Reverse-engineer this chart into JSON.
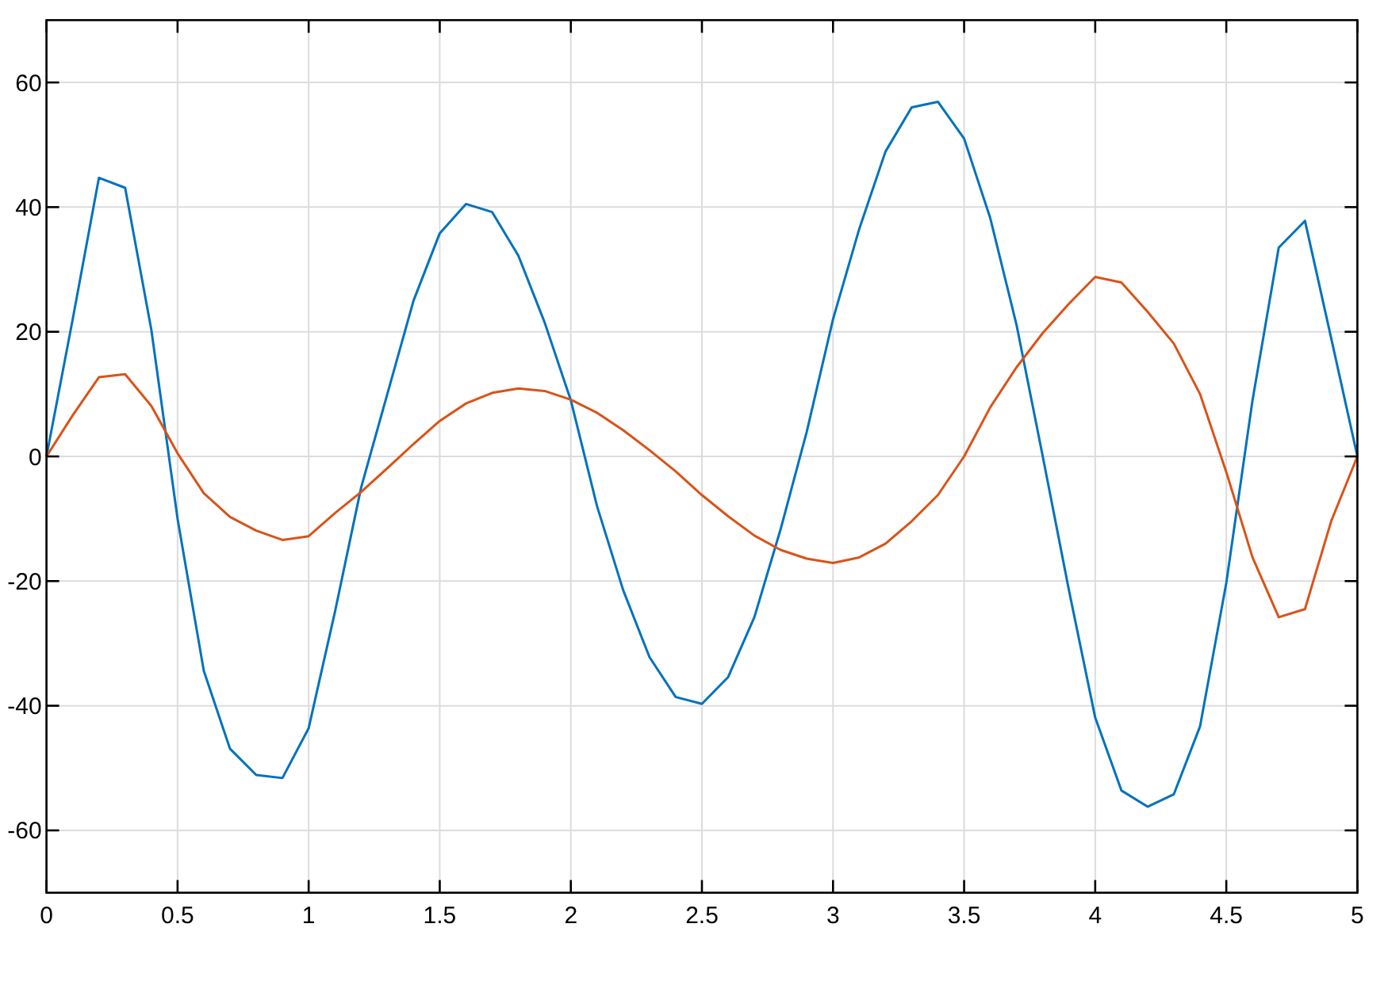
{
  "chart_data": {
    "type": "line",
    "x": [
      0,
      0.1,
      0.2,
      0.3,
      0.4,
      0.5,
      0.6,
      0.7,
      0.8,
      0.9,
      1,
      1.1,
      1.2,
      1.3,
      1.4,
      1.5,
      1.6,
      1.7,
      1.8,
      1.9,
      2,
      2.1,
      2.2,
      2.3,
      2.4,
      2.5,
      2.6,
      2.7,
      2.8,
      2.9,
      3,
      3.1,
      3.2,
      3.3,
      3.4,
      3.5,
      3.6,
      3.7,
      3.8,
      3.9,
      4,
      4.1,
      4.2,
      4.3,
      4.4,
      4.5,
      4.6,
      4.7,
      4.8,
      4.9,
      5
    ],
    "series": [
      {
        "color": "#0072bd",
        "values": [
          0,
          22,
          44.7,
          43.1,
          20.3,
          -10,
          -34.4,
          -46.9,
          -51.1,
          -51.6,
          -43.6,
          -25,
          -5,
          10,
          25,
          35.8,
          40.5,
          39.2,
          32.2,
          21.5,
          9,
          -8,
          -21.5,
          -32.2,
          -38.6,
          -39.7,
          -35.4,
          -25.8,
          -11.7,
          4,
          22,
          36.5,
          48.9,
          56,
          56.9,
          51,
          38.2,
          21.1,
          0,
          -21.5,
          -41.9,
          -53.6,
          -56.2,
          -54.2,
          -43.3,
          -20.3,
          9,
          33.5,
          37.8,
          19,
          0
        ]
      },
      {
        "color": "#d95319",
        "values": [
          0,
          6.6,
          12.7,
          13.2,
          8.1,
          0.5,
          -5.9,
          -9.7,
          -11.9,
          -13.4,
          -12.8,
          -9.1,
          -5.7,
          -1.9,
          2,
          5.7,
          8.5,
          10.2,
          10.9,
          10.5,
          9.1,
          7,
          4.2,
          1,
          -2.4,
          -6.2,
          -9.6,
          -12.7,
          -15,
          -16.4,
          -17.1,
          -16.2,
          -14,
          -10.4,
          -6.2,
          0,
          7.9,
          14.3,
          19.8,
          24.5,
          28.8,
          27.9,
          23.2,
          18.1,
          10,
          -2.5,
          -16.2,
          -25.8,
          -24.5,
          -10.4,
          0
        ]
      }
    ],
    "xlim": [
      0,
      5
    ],
    "ylim": [
      -70,
      70
    ],
    "xticks": [
      0,
      0.5,
      1,
      1.5,
      2,
      2.5,
      3,
      3.5,
      4,
      4.5,
      5
    ],
    "yticks": [
      -60,
      -40,
      -20,
      0,
      20,
      40,
      60
    ],
    "grid": true
  }
}
